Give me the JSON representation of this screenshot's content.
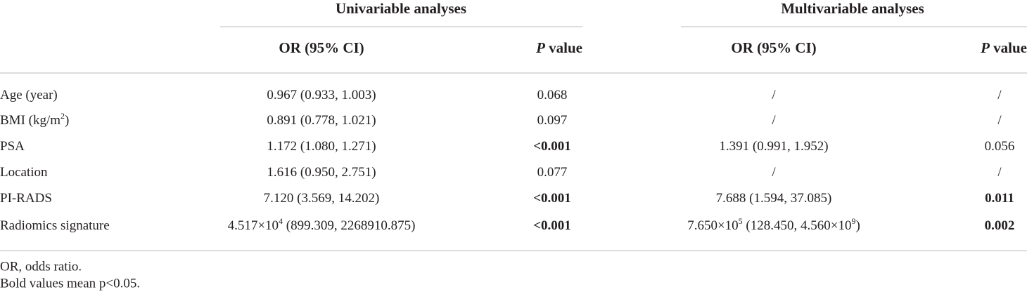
{
  "table": {
    "group_headers": [
      "Univariable analyses",
      "Multivariable analyses"
    ],
    "sub_headers": [
      {
        "parts": [
          {
            "text": "OR (95% CI)"
          }
        ]
      },
      {
        "parts": [
          {
            "text": "P",
            "italic": true
          },
          {
            "text": " value"
          }
        ]
      },
      {
        "parts": [
          {
            "text": "OR (95% CI)"
          }
        ]
      },
      {
        "parts": [
          {
            "text": "P",
            "italic": true
          },
          {
            "text": " value"
          }
        ]
      }
    ],
    "rows": [
      [
        {
          "parts": [
            {
              "text": "Age (year)"
            }
          ]
        },
        {
          "parts": [
            {
              "text": "0.967 (0.933, 1.003)"
            }
          ]
        },
        {
          "parts": [
            {
              "text": "0.068"
            }
          ]
        },
        {
          "parts": [
            {
              "text": "/"
            }
          ]
        },
        {
          "parts": [
            {
              "text": "/"
            }
          ]
        }
      ],
      [
        {
          "parts": [
            {
              "text": "BMI (kg/m"
            },
            {
              "text": "2",
              "sup": true
            },
            {
              "text": ")"
            }
          ]
        },
        {
          "parts": [
            {
              "text": "0.891 (0.778, 1.021)"
            }
          ]
        },
        {
          "parts": [
            {
              "text": "0.097"
            }
          ]
        },
        {
          "parts": [
            {
              "text": "/"
            }
          ]
        },
        {
          "parts": [
            {
              "text": "/"
            }
          ]
        }
      ],
      [
        {
          "parts": [
            {
              "text": "PSA"
            }
          ]
        },
        {
          "parts": [
            {
              "text": "1.172 (1.080, 1.271)"
            }
          ]
        },
        {
          "parts": [
            {
              "text": "<0.001",
              "bold": true
            }
          ]
        },
        {
          "parts": [
            {
              "text": "1.391 (0.991, 1.952)"
            }
          ]
        },
        {
          "parts": [
            {
              "text": "0.056"
            }
          ]
        }
      ],
      [
        {
          "parts": [
            {
              "text": "Location"
            }
          ]
        },
        {
          "parts": [
            {
              "text": "1.616 (0.950, 2.751)"
            }
          ]
        },
        {
          "parts": [
            {
              "text": "0.077"
            }
          ]
        },
        {
          "parts": [
            {
              "text": "/"
            }
          ]
        },
        {
          "parts": [
            {
              "text": "/"
            }
          ]
        }
      ],
      [
        {
          "parts": [
            {
              "text": "PI-RADS"
            }
          ]
        },
        {
          "parts": [
            {
              "text": "7.120 (3.569, 14.202)"
            }
          ]
        },
        {
          "parts": [
            {
              "text": "<0.001",
              "bold": true
            }
          ]
        },
        {
          "parts": [
            {
              "text": "7.688 (1.594, 37.085)"
            }
          ]
        },
        {
          "parts": [
            {
              "text": "0.011",
              "bold": true
            }
          ]
        }
      ],
      [
        {
          "parts": [
            {
              "text": "Radiomics signature"
            }
          ]
        },
        {
          "parts": [
            {
              "text": "4.517×10"
            },
            {
              "text": "4",
              "sup": true
            },
            {
              "text": " (899.309, 2268910.875)"
            }
          ]
        },
        {
          "parts": [
            {
              "text": "<0.001",
              "bold": true
            }
          ]
        },
        {
          "parts": [
            {
              "text": "7.650×10"
            },
            {
              "text": "5",
              "sup": true
            },
            {
              "text": " (128.450, 4.560×10"
            },
            {
              "text": "9",
              "sup": true
            },
            {
              "text": ")"
            }
          ]
        },
        {
          "parts": [
            {
              "text": "0.002",
              "bold": true
            }
          ]
        }
      ]
    ],
    "footnotes": [
      "OR, odds ratio.",
      "Bold values mean p<0.05."
    ]
  }
}
